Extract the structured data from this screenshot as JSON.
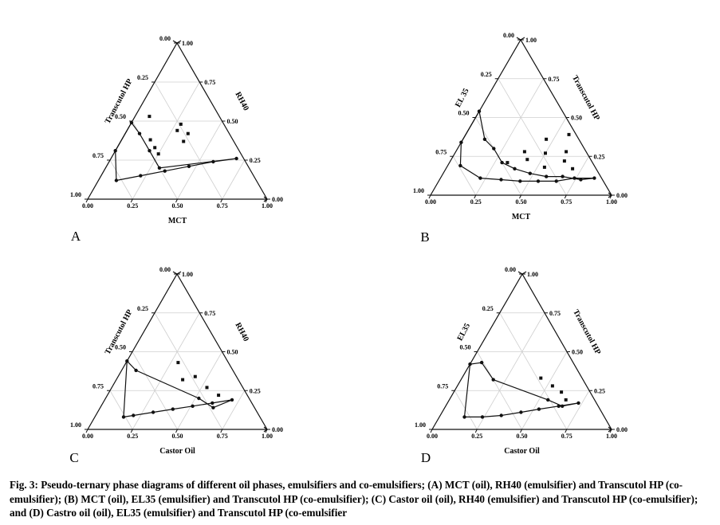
{
  "caption": {
    "label": "Fig. 3:",
    "text": "Pseudo-ternary phase diagrams of different oil phases, emulsifiers and co-emulsifiers; (A) MCT (oil), RH40 (emulsifier) and Transcutol HP (co-emulsifier); (B) MCT (oil), EL35 (emulsifier) and Transcutol HP (co-emulsifier); (C) Castor oil (oil), RH40 (emulsifier) and Transcutol HP (co-emulsifier); and (D) Castro oil (oil), EL35 (emulsifier) and Transcutol HP (co-emulsifier"
  },
  "chart_data": [
    {
      "type": "scatter",
      "subtype": "ternary",
      "panel_label": "A",
      "bottom_axis": "MCT",
      "left_axis": "Transcutol HP",
      "right_axis": "RH40",
      "ticks": [
        "0.00",
        "0.25",
        "0.50",
        "0.75",
        "1.00"
      ],
      "boundary": [
        [
          0.7,
          0.26,
          0.04
        ],
        [
          0.58,
          0.24,
          0.18
        ],
        [
          0.46,
          0.21,
          0.33
        ],
        [
          0.34,
          0.18,
          0.48
        ],
        [
          0.22,
          0.15,
          0.63
        ],
        [
          0.1,
          0.12,
          0.78
        ],
        [
          0.0,
          0.31,
          0.69
        ],
        [
          0.0,
          0.49,
          0.51
        ],
        [
          0.08,
          0.42,
          0.5
        ],
        [
          0.19,
          0.31,
          0.5
        ],
        [
          0.3,
          0.2,
          0.5
        ]
      ],
      "points": [
        [
          0.08,
          0.53,
          0.39
        ],
        [
          0.16,
          0.38,
          0.46
        ],
        [
          0.21,
          0.33,
          0.46
        ],
        [
          0.25,
          0.29,
          0.46
        ],
        [
          0.28,
          0.44,
          0.28
        ],
        [
          0.35,
          0.37,
          0.28
        ],
        [
          0.28,
          0.48,
          0.24
        ],
        [
          0.35,
          0.42,
          0.23
        ]
      ]
    },
    {
      "type": "scatter",
      "subtype": "ternary",
      "panel_label": "B",
      "bottom_axis": "MCT",
      "left_axis": "EL 35",
      "right_axis": "Transcutol HP",
      "ticks": [
        "0.00",
        "0.25",
        "0.50",
        "0.75",
        "1.00"
      ],
      "boundary": [
        [
          0.85,
          0.11,
          0.04
        ],
        [
          0.74,
          0.11,
          0.15
        ],
        [
          0.65,
          0.09,
          0.26
        ],
        [
          0.55,
          0.09,
          0.36
        ],
        [
          0.45,
          0.09,
          0.46
        ],
        [
          0.34,
          0.1,
          0.56
        ],
        [
          0.22,
          0.11,
          0.67
        ],
        [
          0.07,
          0.19,
          0.74
        ],
        [
          0.0,
          0.34,
          0.66
        ],
        [
          0.0,
          0.54,
          0.46
        ],
        [
          0.12,
          0.36,
          0.52
        ],
        [
          0.2,
          0.3,
          0.5
        ],
        [
          0.29,
          0.21,
          0.5
        ],
        [
          0.38,
          0.17,
          0.45
        ],
        [
          0.48,
          0.14,
          0.38
        ],
        [
          0.58,
          0.12,
          0.3
        ],
        [
          0.67,
          0.12,
          0.21
        ],
        [
          0.78,
          0.1,
          0.12
        ]
      ],
      "points": [
        [
          0.32,
          0.21,
          0.47
        ],
        [
          0.38,
          0.28,
          0.34
        ],
        [
          0.42,
          0.23,
          0.35
        ],
        [
          0.46,
          0.36,
          0.18
        ],
        [
          0.5,
          0.27,
          0.23
        ],
        [
          0.54,
          0.18,
          0.28
        ],
        [
          0.57,
          0.39,
          0.04
        ],
        [
          0.61,
          0.28,
          0.11
        ],
        [
          0.63,
          0.22,
          0.15
        ],
        [
          0.7,
          0.17,
          0.13
        ]
      ]
    },
    {
      "type": "scatter",
      "subtype": "ternary",
      "panel_label": "C",
      "bottom_axis": "Castor Oil",
      "left_axis": "Transcutol HP",
      "right_axis": "RH40",
      "ticks": [
        "0.00",
        "0.25",
        "0.50",
        "0.75",
        "1.00"
      ],
      "boundary": [
        [
          0.71,
          0.19,
          0.1
        ],
        [
          0.61,
          0.17,
          0.22
        ],
        [
          0.51,
          0.15,
          0.34
        ],
        [
          0.41,
          0.13,
          0.46
        ],
        [
          0.31,
          0.11,
          0.58
        ],
        [
          0.21,
          0.09,
          0.7
        ],
        [
          0.16,
          0.08,
          0.76
        ],
        [
          0.0,
          0.44,
          0.56
        ],
        [
          0.08,
          0.38,
          0.54
        ],
        [
          0.52,
          0.2,
          0.28
        ],
        [
          0.63,
          0.14,
          0.23
        ]
      ],
      "points": [
        [
          0.37,
          0.32,
          0.31
        ],
        [
          0.29,
          0.43,
          0.28
        ],
        [
          0.43,
          0.34,
          0.23
        ],
        [
          0.53,
          0.27,
          0.2
        ],
        [
          0.62,
          0.22,
          0.16
        ]
      ]
    },
    {
      "type": "scatter",
      "subtype": "ternary",
      "panel_label": "D",
      "bottom_axis": "Castor Oil",
      "left_axis": "EL35",
      "right_axis": "Transcutol HP",
      "ticks": [
        "0.00",
        "0.25",
        "0.50",
        "0.75",
        "1.00"
      ],
      "boundary": [
        [
          0.73,
          0.17,
          0.1
        ],
        [
          0.63,
          0.15,
          0.22
        ],
        [
          0.53,
          0.13,
          0.34
        ],
        [
          0.44,
          0.11,
          0.45
        ],
        [
          0.34,
          0.09,
          0.57
        ],
        [
          0.24,
          0.08,
          0.68
        ],
        [
          0.14,
          0.08,
          0.78
        ],
        [
          0.0,
          0.42,
          0.58
        ],
        [
          0.06,
          0.43,
          0.51
        ],
        [
          0.18,
          0.32,
          0.5
        ],
        [
          0.55,
          0.19,
          0.26
        ],
        [
          0.65,
          0.15,
          0.2
        ]
      ],
      "points": [
        [
          0.44,
          0.33,
          0.23
        ],
        [
          0.53,
          0.28,
          0.19
        ],
        [
          0.6,
          0.24,
          0.16
        ],
        [
          0.65,
          0.19,
          0.16
        ]
      ]
    }
  ]
}
